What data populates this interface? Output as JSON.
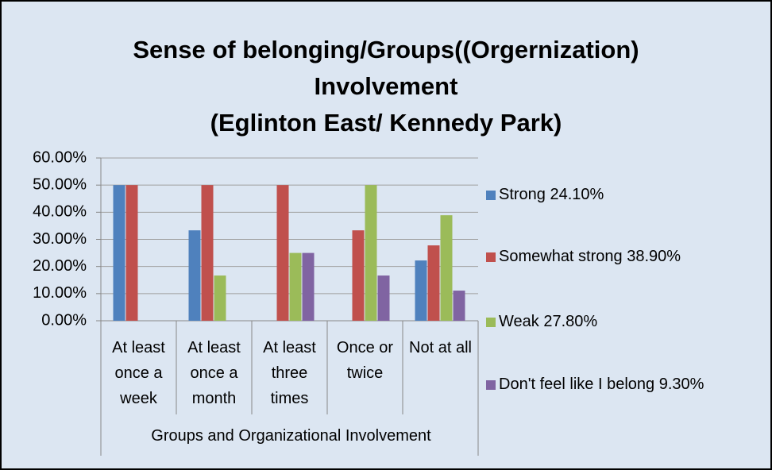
{
  "chart_data": {
    "type": "bar",
    "title": "Sense of belonging/Groups((Orgernization)\nInvolvement\n(Eglinton East/ Kennedy Park)",
    "x_label": "Groups and Organizational Involvement",
    "categories": [
      "At least once a week",
      "At least once a month",
      "At least three times",
      "Once or twice",
      "Not at all"
    ],
    "series": [
      {
        "name": "Strong 24.10%",
        "color": "#4f81bd",
        "values": [
          50,
          33.33,
          0,
          0,
          22.22
        ]
      },
      {
        "name": "Somewhat strong 38.90%",
        "color": "#c0504d",
        "values": [
          50,
          50,
          50,
          33.33,
          27.78
        ]
      },
      {
        "name": "Weak 27.80%",
        "color": "#9bbb59",
        "values": [
          0,
          16.67,
          25,
          50,
          38.89
        ]
      },
      {
        "name": "Don't feel like I belong 9.30%",
        "color": "#8064a2",
        "values": [
          0,
          0,
          25,
          16.67,
          11.11
        ]
      }
    ],
    "ylim": [
      0,
      60
    ],
    "yticks": [
      {
        "value": 0,
        "label": "0.00%"
      },
      {
        "value": 10,
        "label": "10.00%"
      },
      {
        "value": 20,
        "label": "20.00%"
      },
      {
        "value": 30,
        "label": "30.00%"
      },
      {
        "value": 40,
        "label": "40.00%"
      },
      {
        "value": 50,
        "label": "50.00%"
      },
      {
        "value": 60,
        "label": "60.00%"
      }
    ],
    "grid": true,
    "legend": "right"
  }
}
